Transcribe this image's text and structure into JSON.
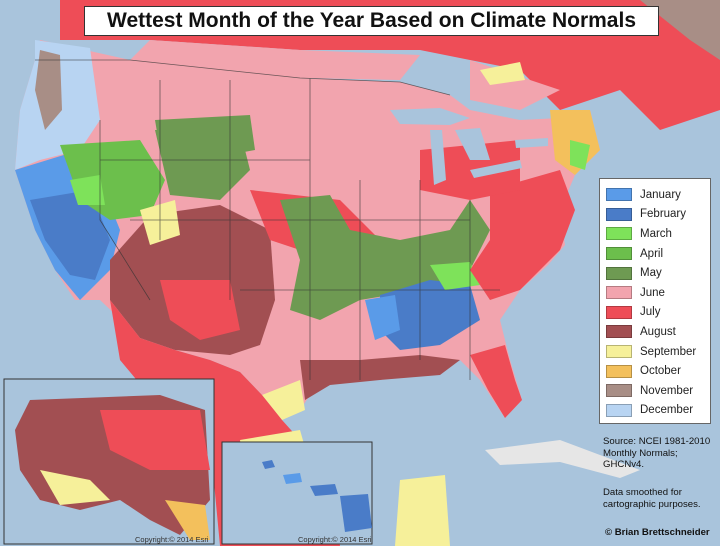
{
  "title": "Wettest Month of the Year Based on Climate Normals",
  "legend": [
    {
      "label": "January",
      "color": "#5a9be8"
    },
    {
      "label": "February",
      "color": "#4a7cc8"
    },
    {
      "label": "March",
      "color": "#7ee25a"
    },
    {
      "label": "April",
      "color": "#6cbf4c"
    },
    {
      "label": "May",
      "color": "#6e9a52"
    },
    {
      "label": "June",
      "color": "#f2a4ae"
    },
    {
      "label": "July",
      "color": "#ee4d57"
    },
    {
      "label": "August",
      "color": "#a24f52"
    },
    {
      "label": "September",
      "color": "#f6f09a"
    },
    {
      "label": "October",
      "color": "#f3c05c"
    },
    {
      "label": "November",
      "color": "#a88e86"
    },
    {
      "label": "December",
      "color": "#b8d4f2"
    }
  ],
  "source": "Source: NCEI 1981-2010 Monthly Normals; GHCNv4.",
  "note": "Data smoothed for cartographic purposes.",
  "credit": "© Brian Brettschneider",
  "inset_credits": {
    "alaska": "Copyright:© 2014 Esri",
    "hawaii": "Copyright:© 2014 Esri"
  },
  "colors": {
    "ocean": "#a9c4dc",
    "land_gray": "#d9d6cf",
    "border": "#333333"
  }
}
